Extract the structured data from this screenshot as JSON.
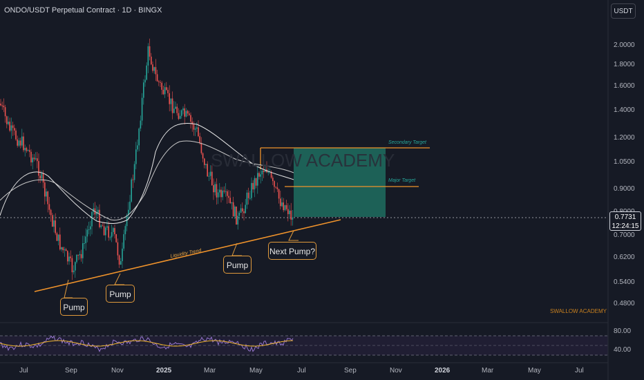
{
  "header": {
    "title": "ONDO/USDT Perpetual Contract · 1D · BINGX",
    "currency_button": "USDT"
  },
  "price_axis": {
    "ticks": [
      "2.0000",
      "1.8000",
      "1.6000",
      "1.4000",
      "1.2000",
      "1.0500",
      "0.9000",
      "0.8000",
      "0.7000",
      "0.6200",
      "0.5400",
      "0.4800"
    ]
  },
  "current_price": {
    "value": "0.7731",
    "countdown": "12:24:15"
  },
  "rsi_axis": {
    "ticks": [
      "80.00",
      "40.00"
    ]
  },
  "time_axis": {
    "labels": [
      "Jul",
      "Sep",
      "Nov",
      "2025",
      "Mar",
      "May",
      "Jul",
      "Sep",
      "Nov",
      "2026",
      "Mar",
      "May",
      "Jul"
    ]
  },
  "annotations": {
    "watermark": "SWALLOW ACADEMY",
    "watermark_small": "SWALLOW ACADEMY",
    "secondary_target": "Secondary Target",
    "major_target": "Major Target",
    "liquidity_trend": "Liquidity Trend",
    "pump_1": "Pump",
    "pump_2": "Pump",
    "pump_3": "Pump",
    "next_pump": "Next Pump?"
  },
  "colors": {
    "up": "#26a69a",
    "down": "#ef5350",
    "trend": "#f0932b",
    "target_zone": "#1e6b5e",
    "ma": "#e0e0e0",
    "rsi": "#7e57c2"
  }
}
